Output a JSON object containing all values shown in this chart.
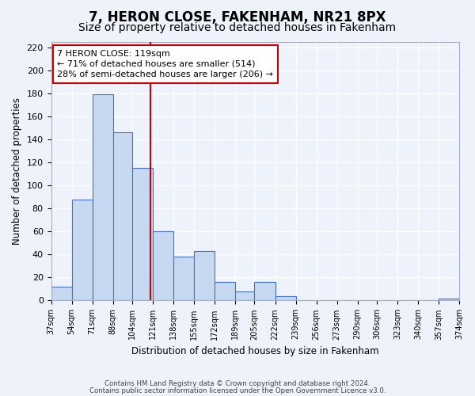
{
  "title": "7, HERON CLOSE, FAKENHAM, NR21 8PX",
  "subtitle": "Size of property relative to detached houses in Fakenham",
  "xlabel": "Distribution of detached houses by size in Fakenham",
  "ylabel": "Number of detached properties",
  "bar_values": [
    12,
    88,
    179,
    146,
    115,
    60,
    38,
    43,
    16,
    8,
    16,
    4,
    0,
    0,
    0,
    0,
    0,
    0,
    0,
    2
  ],
  "bin_edges": [
    37,
    54,
    71,
    88,
    104,
    121,
    138,
    155,
    172,
    189,
    205,
    222,
    239,
    256,
    273,
    290,
    306,
    323,
    340,
    357,
    374
  ],
  "tick_labels": [
    "37sqm",
    "54sqm",
    "71sqm",
    "88sqm",
    "104sqm",
    "121sqm",
    "138sqm",
    "155sqm",
    "172sqm",
    "189sqm",
    "205sqm",
    "222sqm",
    "239sqm",
    "256sqm",
    "273sqm",
    "290sqm",
    "306sqm",
    "323sqm",
    "340sqm",
    "357sqm",
    "374sqm"
  ],
  "bar_color": "#c6d9f0",
  "bar_edge_color": "#4472c4",
  "vline_x": 119,
  "vline_color": "#cc0000",
  "annotation_text": "7 HERON CLOSE: 119sqm\n← 71% of detached houses are smaller (514)\n28% of semi-detached houses are larger (206) →",
  "annotation_box_color": "#ffffff",
  "annotation_box_edge": "#cc0000",
  "ylim": [
    0,
    225
  ],
  "yticks": [
    0,
    20,
    40,
    60,
    80,
    100,
    120,
    140,
    160,
    180,
    200,
    220
  ],
  "background_color": "#eef2fb",
  "grid_color": "#ffffff",
  "footer_line1": "Contains HM Land Registry data © Crown copyright and database right 2024.",
  "footer_line2": "Contains public sector information licensed under the Open Government Licence v3.0.",
  "title_fontsize": 12,
  "subtitle_fontsize": 10
}
